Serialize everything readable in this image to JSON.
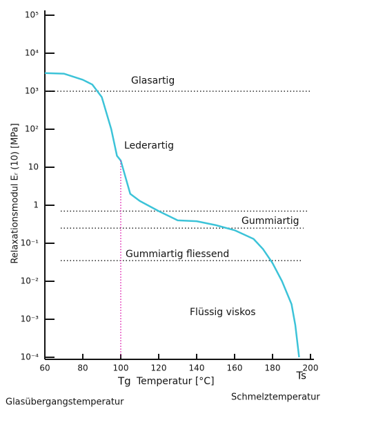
{
  "chart_data": {
    "type": "line",
    "y_label": "Relaxationsmodul  Eᵣ (10)  [MPa]",
    "x_label": "Temperatur [°C]",
    "x": [
      60,
      70,
      80,
      85,
      90,
      95,
      98,
      100,
      105,
      110,
      120,
      130,
      140,
      150,
      160,
      170,
      175,
      180,
      185,
      190,
      192,
      194
    ],
    "series": [
      {
        "name": "Relaxationsmodul",
        "color": "#3cc3d8",
        "values": [
          3000,
          2900,
          2000,
          1500,
          700,
          100,
          20,
          15,
          2,
          1.3,
          0.7,
          0.4,
          0.38,
          0.3,
          0.22,
          0.13,
          0.07,
          0.03,
          0.01,
          0.0025,
          0.0007,
          0.0001
        ]
      }
    ],
    "xlim": [
      60,
      200
    ],
    "xticks": [
      60,
      80,
      100,
      120,
      140,
      160,
      180,
      200
    ],
    "ylim": [
      0.0001,
      100000
    ],
    "log_y": true,
    "yticks": [
      {
        "value": 0.0001,
        "label": "10⁻⁴"
      },
      {
        "value": 0.001,
        "label": "10⁻³"
      },
      {
        "value": 0.01,
        "label": "10⁻²"
      },
      {
        "value": 0.1,
        "label": "10⁻¹"
      },
      1,
      10,
      {
        "value": 100,
        "label": "10²"
      },
      {
        "value": 1000,
        "label": "10³"
      },
      {
        "value": 10000,
        "label": "10⁴"
      },
      {
        "value": 100000,
        "label": "10⁵"
      }
    ],
    "reference_lines": [
      1000,
      0.7,
      0.25,
      0.035
    ],
    "reference_color": "#222222",
    "annotation_color": "#e8b830",
    "region_labels": [
      "Glasartig",
      "Lederartig",
      "Gummiartig",
      "Gummiartig fliessend",
      "Flüssig viskos"
    ],
    "tg": {
      "value": 100,
      "label": "Tg",
      "name": "Glasübergangstemperatur"
    },
    "ts": {
      "value": 194,
      "label": "Ts",
      "name": "Schmelztemperatur"
    },
    "marker_color": "#e020b0"
  }
}
